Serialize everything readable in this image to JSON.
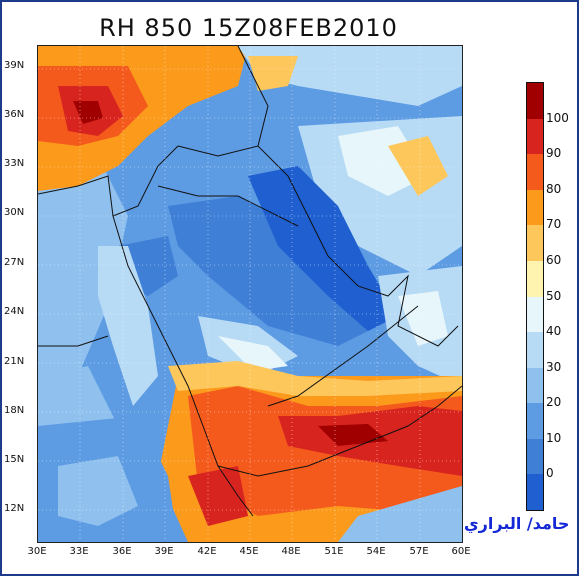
{
  "title": "RH 850 15Z08FEB2010",
  "lat_labels": [
    "39N",
    "36N",
    "33N",
    "30N",
    "27N",
    "24N",
    "21N",
    "18N",
    "15N",
    "12N"
  ],
  "lon_labels": [
    "30E",
    "33E",
    "36E",
    "39E",
    "42E",
    "45E",
    "48E",
    "51E",
    "54E",
    "57E",
    "60E"
  ],
  "colorbar": {
    "labels": [
      "100",
      "90",
      "80",
      "70",
      "60",
      "50",
      "40",
      "30",
      "20",
      "10",
      "0"
    ],
    "colors": [
      "#a00000",
      "#d8241e",
      "#f45a1c",
      "#fc9a1c",
      "#fdc75b",
      "#fff3b0",
      "#e6f6fb",
      "#b7daf5",
      "#8fc0ee",
      "#5d9be3",
      "#3f7fd6",
      "#1f5fcf"
    ]
  },
  "signature": "حامد/ البراري"
}
